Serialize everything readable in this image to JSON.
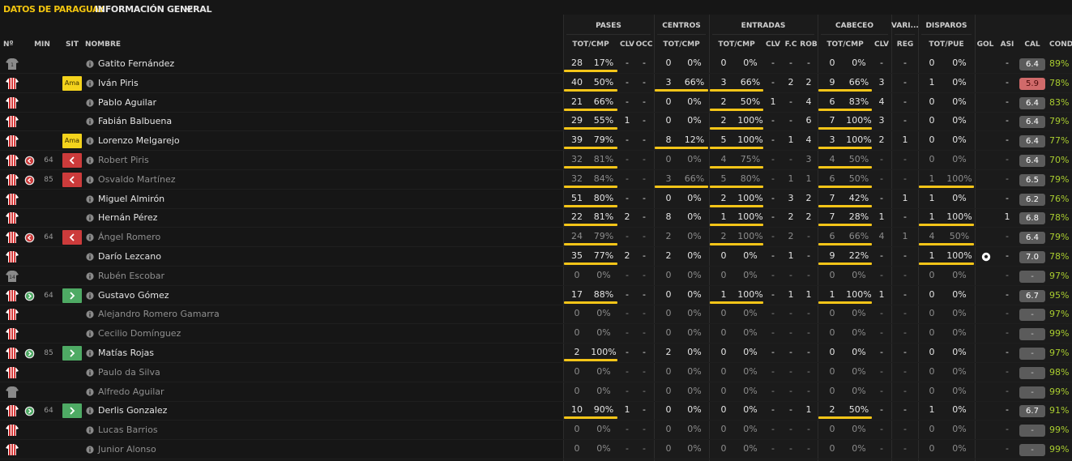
{
  "header": {
    "team_title": "DATOS DE PARAGUAY",
    "view_selector": "INFORMACIÓN GENERAL"
  },
  "groups": [
    {
      "key": "pases",
      "label": "PASES"
    },
    {
      "key": "centros",
      "label": "CENTROS"
    },
    {
      "key": "entradas",
      "label": "ENTRADAS"
    },
    {
      "key": "cabeceo",
      "label": "CABECEO"
    },
    {
      "key": "varios",
      "label": "VARI..."
    },
    {
      "key": "disparos",
      "label": "DISPAROS"
    }
  ],
  "columns": {
    "num": "Nº",
    "min": "MIN",
    "sit": "SIT",
    "nombre": "NOMBRE",
    "pases_totcmp": "TOT/CMP",
    "pases_clv": "CLV",
    "pases_occ": "OCC",
    "centros_totcmp": "TOT/CMP",
    "entradas_totcmp": "TOT/CMP",
    "entradas_clv": "CLV",
    "entradas_fc": "F.C",
    "entradas_rob": "ROB",
    "cabeceo_totcmp": "TOT/CMP",
    "cabeceo_clv": "CLV",
    "varios_reg": "REG",
    "disparos_totpue": "TOT/PUE",
    "gol": "GOL",
    "asi": "ASI",
    "cal": "CAL",
    "cond": "CONDI"
  },
  "colors": {
    "accent": "#f1c40f",
    "bar": "#f5c518",
    "sub_out": "#cc3b3b",
    "sub_in": "#4eaa64",
    "booking": "#f4d31c",
    "condition": "#a9cc2f",
    "low_rating": "#d06a6a"
  },
  "players": [
    {
      "name": "Gatito Fernández",
      "kit": "goalkeeper-kit",
      "num": "1",
      "min": "",
      "sit": "",
      "active": true,
      "pas": [
        "28",
        "17%"
      ],
      "pas_bar": 1,
      "pas_clv": "-",
      "pas_occ": "-",
      "cen": [
        "0",
        "0%"
      ],
      "cen_bar": 0,
      "ent": [
        "0",
        "0%"
      ],
      "ent_bar": 0,
      "ent_clv": "-",
      "ent_fc": "-",
      "ent_rob": "-",
      "cab": [
        "0",
        "0%"
      ],
      "cab_bar": 0,
      "cab_clv": "-",
      "reg": "-",
      "dis": [
        "0",
        "0%"
      ],
      "dis_bar": 0,
      "gol": "",
      "asi": "-",
      "cal": "6.4",
      "cal_type": "n",
      "cond": "89%"
    },
    {
      "name": "Iván Piris",
      "kit": "striped-kit",
      "num": "",
      "min": "",
      "sit": "Ama",
      "active": true,
      "pas": [
        "40",
        "50%"
      ],
      "pas_bar": 1,
      "pas_clv": "-",
      "pas_occ": "-",
      "cen": [
        "3",
        "66%"
      ],
      "cen_bar": 1,
      "ent": [
        "3",
        "66%"
      ],
      "ent_bar": 1,
      "ent_clv": "-",
      "ent_fc": "2",
      "ent_rob": "2",
      "cab": [
        "9",
        "66%"
      ],
      "cab_bar": 1,
      "cab_clv": "3",
      "reg": "-",
      "dis": [
        "1",
        "0%"
      ],
      "dis_bar": 0,
      "gol": "",
      "asi": "-",
      "cal": "5.9",
      "cal_type": "bad",
      "cond": "78%"
    },
    {
      "name": "Pablo Aguilar",
      "kit": "striped-kit",
      "num": "",
      "min": "",
      "sit": "",
      "active": true,
      "pas": [
        "21",
        "66%"
      ],
      "pas_bar": 1,
      "pas_clv": "-",
      "pas_occ": "-",
      "cen": [
        "0",
        "0%"
      ],
      "cen_bar": 0,
      "ent": [
        "2",
        "50%"
      ],
      "ent_bar": 1,
      "ent_clv": "1",
      "ent_fc": "-",
      "ent_rob": "4",
      "cab": [
        "6",
        "83%"
      ],
      "cab_bar": 1,
      "cab_clv": "4",
      "reg": "-",
      "dis": [
        "0",
        "0%"
      ],
      "dis_bar": 0,
      "gol": "",
      "asi": "-",
      "cal": "6.4",
      "cal_type": "n",
      "cond": "83%"
    },
    {
      "name": "Fabián Balbuena",
      "kit": "striped-kit",
      "num": "",
      "min": "",
      "sit": "",
      "active": true,
      "pas": [
        "29",
        "55%"
      ],
      "pas_bar": 1,
      "pas_clv": "1",
      "pas_occ": "-",
      "cen": [
        "0",
        "0%"
      ],
      "cen_bar": 0,
      "ent": [
        "2",
        "100%"
      ],
      "ent_bar": 1,
      "ent_clv": "-",
      "ent_fc": "-",
      "ent_rob": "6",
      "cab": [
        "7",
        "100%"
      ],
      "cab_bar": 1,
      "cab_clv": "3",
      "reg": "-",
      "dis": [
        "0",
        "0%"
      ],
      "dis_bar": 0,
      "gol": "",
      "asi": "-",
      "cal": "6.4",
      "cal_type": "n",
      "cond": "79%"
    },
    {
      "name": "Lorenzo Melgarejo",
      "kit": "striped-kit",
      "num": "",
      "min": "",
      "sit": "Ama",
      "active": true,
      "pas": [
        "39",
        "79%"
      ],
      "pas_bar": 1,
      "pas_clv": "-",
      "pas_occ": "-",
      "cen": [
        "8",
        "12%"
      ],
      "cen_bar": 1,
      "ent": [
        "5",
        "100%"
      ],
      "ent_bar": 1,
      "ent_clv": "-",
      "ent_fc": "1",
      "ent_rob": "4",
      "cab": [
        "3",
        "100%"
      ],
      "cab_bar": 1,
      "cab_clv": "2",
      "reg": "1",
      "dis": [
        "0",
        "0%"
      ],
      "dis_bar": 0,
      "gol": "",
      "asi": "-",
      "cal": "6.4",
      "cal_type": "n",
      "cond": "77%"
    },
    {
      "name": "Robert Piris",
      "kit": "striped-kit",
      "num": "",
      "min": "64",
      "sit": "out",
      "active": false,
      "pas": [
        "32",
        "81%"
      ],
      "pas_bar": 1,
      "pas_clv": "-",
      "pas_occ": "-",
      "cen": [
        "0",
        "0%"
      ],
      "cen_bar": 0,
      "ent": [
        "4",
        "75%"
      ],
      "ent_bar": 1,
      "ent_clv": "-",
      "ent_fc": "-",
      "ent_rob": "3",
      "cab": [
        "4",
        "50%"
      ],
      "cab_bar": 1,
      "cab_clv": "-",
      "reg": "-",
      "dis": [
        "0",
        "0%"
      ],
      "dis_bar": 0,
      "gol": "",
      "asi": "-",
      "cal": "6.4",
      "cal_type": "n",
      "cond": "70%"
    },
    {
      "name": "Osvaldo Martínez",
      "kit": "striped-kit",
      "num": "",
      "min": "85",
      "sit": "out",
      "active": false,
      "pas": [
        "32",
        "84%"
      ],
      "pas_bar": 1,
      "pas_clv": "-",
      "pas_occ": "-",
      "cen": [
        "3",
        "66%"
      ],
      "cen_bar": 1,
      "ent": [
        "5",
        "80%"
      ],
      "ent_bar": 1,
      "ent_clv": "-",
      "ent_fc": "1",
      "ent_rob": "1",
      "cab": [
        "6",
        "50%"
      ],
      "cab_bar": 1,
      "cab_clv": "-",
      "reg": "-",
      "dis": [
        "1",
        "100%"
      ],
      "dis_bar": 1,
      "gol": "",
      "asi": "-",
      "cal": "6.5",
      "cal_type": "n",
      "cond": "79%"
    },
    {
      "name": "Miguel Almirón",
      "kit": "striped-kit",
      "num": "",
      "min": "",
      "sit": "",
      "active": true,
      "pas": [
        "51",
        "80%"
      ],
      "pas_bar": 1,
      "pas_clv": "-",
      "pas_occ": "-",
      "cen": [
        "0",
        "0%"
      ],
      "cen_bar": 0,
      "ent": [
        "2",
        "100%"
      ],
      "ent_bar": 1,
      "ent_clv": "-",
      "ent_fc": "3",
      "ent_rob": "2",
      "cab": [
        "7",
        "42%"
      ],
      "cab_bar": 1,
      "cab_clv": "-",
      "reg": "1",
      "dis": [
        "1",
        "0%"
      ],
      "dis_bar": 0,
      "gol": "",
      "asi": "-",
      "cal": "6.2",
      "cal_type": "n",
      "cond": "76%"
    },
    {
      "name": "Hernán Pérez",
      "kit": "striped-kit",
      "num": "",
      "min": "",
      "sit": "",
      "active": true,
      "pas": [
        "22",
        "81%"
      ],
      "pas_bar": 1,
      "pas_clv": "2",
      "pas_occ": "-",
      "cen": [
        "8",
        "0%"
      ],
      "cen_bar": 0,
      "ent": [
        "1",
        "100%"
      ],
      "ent_bar": 1,
      "ent_clv": "-",
      "ent_fc": "2",
      "ent_rob": "2",
      "cab": [
        "7",
        "28%"
      ],
      "cab_bar": 1,
      "cab_clv": "1",
      "reg": "-",
      "dis": [
        "1",
        "100%"
      ],
      "dis_bar": 1,
      "gol": "",
      "asi": "1",
      "cal": "6.8",
      "cal_type": "n",
      "cond": "78%"
    },
    {
      "name": "Ángel Romero",
      "kit": "striped-kit",
      "num": "",
      "min": "64",
      "sit": "out",
      "active": false,
      "pas": [
        "24",
        "79%"
      ],
      "pas_bar": 1,
      "pas_clv": "-",
      "pas_occ": "-",
      "cen": [
        "2",
        "0%"
      ],
      "cen_bar": 0,
      "ent": [
        "2",
        "100%"
      ],
      "ent_bar": 1,
      "ent_clv": "-",
      "ent_fc": "2",
      "ent_rob": "-",
      "cab": [
        "6",
        "66%"
      ],
      "cab_bar": 1,
      "cab_clv": "4",
      "reg": "1",
      "dis": [
        "4",
        "50%"
      ],
      "dis_bar": 1,
      "gol": "",
      "asi": "-",
      "cal": "6.4",
      "cal_type": "n",
      "cond": "79%"
    },
    {
      "name": "Darío Lezcano",
      "kit": "striped-kit",
      "num": "",
      "min": "",
      "sit": "",
      "active": true,
      "pas": [
        "35",
        "77%"
      ],
      "pas_bar": 1,
      "pas_clv": "2",
      "pas_occ": "-",
      "cen": [
        "2",
        "0%"
      ],
      "cen_bar": 0,
      "ent": [
        "0",
        "0%"
      ],
      "ent_bar": 0,
      "ent_clv": "-",
      "ent_fc": "1",
      "ent_rob": "-",
      "cab": [
        "9",
        "22%"
      ],
      "cab_bar": 1,
      "cab_clv": "-",
      "reg": "-",
      "dis": [
        "1",
        "100%"
      ],
      "dis_bar": 1,
      "gol": "ball",
      "asi": "-",
      "cal": "7.0",
      "cal_type": "n",
      "cond": "78%"
    },
    {
      "name": "Rubén Escobar",
      "kit": "goalkeeper-kit",
      "num": "14",
      "min": "",
      "sit": "",
      "active": false,
      "pas": [
        "0",
        "0%"
      ],
      "pas_bar": 0,
      "pas_clv": "-",
      "pas_occ": "-",
      "cen": [
        "0",
        "0%"
      ],
      "cen_bar": 0,
      "ent": [
        "0",
        "0%"
      ],
      "ent_bar": 0,
      "ent_clv": "-",
      "ent_fc": "-",
      "ent_rob": "-",
      "cab": [
        "0",
        "0%"
      ],
      "cab_bar": 0,
      "cab_clv": "-",
      "reg": "-",
      "dis": [
        "0",
        "0%"
      ],
      "dis_bar": 0,
      "gol": "",
      "asi": "-",
      "cal": "-",
      "cal_type": "none",
      "cond": "97%"
    },
    {
      "name": "Gustavo Gómez",
      "kit": "striped-kit",
      "num": "",
      "min": "64",
      "sit": "in",
      "active": true,
      "pas": [
        "17",
        "88%"
      ],
      "pas_bar": 1,
      "pas_clv": "-",
      "pas_occ": "-",
      "cen": [
        "0",
        "0%"
      ],
      "cen_bar": 0,
      "ent": [
        "1",
        "100%"
      ],
      "ent_bar": 1,
      "ent_clv": "-",
      "ent_fc": "1",
      "ent_rob": "1",
      "cab": [
        "1",
        "100%"
      ],
      "cab_bar": 1,
      "cab_clv": "1",
      "reg": "-",
      "dis": [
        "0",
        "0%"
      ],
      "dis_bar": 0,
      "gol": "",
      "asi": "-",
      "cal": "6.7",
      "cal_type": "n",
      "cond": "95%"
    },
    {
      "name": "Alejandro Romero Gamarra",
      "kit": "striped-kit",
      "num": "",
      "min": "",
      "sit": "",
      "active": false,
      "pas": [
        "0",
        "0%"
      ],
      "pas_bar": 0,
      "pas_clv": "-",
      "pas_occ": "-",
      "cen": [
        "0",
        "0%"
      ],
      "cen_bar": 0,
      "ent": [
        "0",
        "0%"
      ],
      "ent_bar": 0,
      "ent_clv": "-",
      "ent_fc": "-",
      "ent_rob": "-",
      "cab": [
        "0",
        "0%"
      ],
      "cab_bar": 0,
      "cab_clv": "-",
      "reg": "-",
      "dis": [
        "0",
        "0%"
      ],
      "dis_bar": 0,
      "gol": "",
      "asi": "-",
      "cal": "-",
      "cal_type": "none",
      "cond": "97%"
    },
    {
      "name": "Cecilio Domínguez",
      "kit": "striped-kit",
      "num": "",
      "min": "",
      "sit": "",
      "active": false,
      "pas": [
        "0",
        "0%"
      ],
      "pas_bar": 0,
      "pas_clv": "-",
      "pas_occ": "-",
      "cen": [
        "0",
        "0%"
      ],
      "cen_bar": 0,
      "ent": [
        "0",
        "0%"
      ],
      "ent_bar": 0,
      "ent_clv": "-",
      "ent_fc": "-",
      "ent_rob": "-",
      "cab": [
        "0",
        "0%"
      ],
      "cab_bar": 0,
      "cab_clv": "-",
      "reg": "-",
      "dis": [
        "0",
        "0%"
      ],
      "dis_bar": 0,
      "gol": "",
      "asi": "-",
      "cal": "-",
      "cal_type": "none",
      "cond": "99%"
    },
    {
      "name": "Matías Rojas",
      "kit": "striped-kit",
      "num": "",
      "min": "85",
      "sit": "in",
      "active": true,
      "pas": [
        "2",
        "100%"
      ],
      "pas_bar": 1,
      "pas_clv": "-",
      "pas_occ": "-",
      "cen": [
        "2",
        "0%"
      ],
      "cen_bar": 0,
      "ent": [
        "0",
        "0%"
      ],
      "ent_bar": 0,
      "ent_clv": "-",
      "ent_fc": "-",
      "ent_rob": "-",
      "cab": [
        "0",
        "0%"
      ],
      "cab_bar": 0,
      "cab_clv": "-",
      "reg": "-",
      "dis": [
        "0",
        "0%"
      ],
      "dis_bar": 0,
      "gol": "",
      "asi": "-",
      "cal": "-",
      "cal_type": "none",
      "cond": "97%"
    },
    {
      "name": "Paulo da Silva",
      "kit": "striped-kit",
      "num": "",
      "min": "",
      "sit": "",
      "active": false,
      "pas": [
        "0",
        "0%"
      ],
      "pas_bar": 0,
      "pas_clv": "-",
      "pas_occ": "-",
      "cen": [
        "0",
        "0%"
      ],
      "cen_bar": 0,
      "ent": [
        "0",
        "0%"
      ],
      "ent_bar": 0,
      "ent_clv": "-",
      "ent_fc": "-",
      "ent_rob": "-",
      "cab": [
        "0",
        "0%"
      ],
      "cab_bar": 0,
      "cab_clv": "-",
      "reg": "-",
      "dis": [
        "0",
        "0%"
      ],
      "dis_bar": 0,
      "gol": "",
      "asi": "-",
      "cal": "-",
      "cal_type": "none",
      "cond": "98%"
    },
    {
      "name": "Alfredo Aguilar",
      "kit": "goalkeeper-kit",
      "num": "",
      "min": "",
      "sit": "",
      "active": false,
      "pas": [
        "0",
        "0%"
      ],
      "pas_bar": 0,
      "pas_clv": "-",
      "pas_occ": "-",
      "cen": [
        "0",
        "0%"
      ],
      "cen_bar": 0,
      "ent": [
        "0",
        "0%"
      ],
      "ent_bar": 0,
      "ent_clv": "-",
      "ent_fc": "-",
      "ent_rob": "-",
      "cab": [
        "0",
        "0%"
      ],
      "cab_bar": 0,
      "cab_clv": "-",
      "reg": "-",
      "dis": [
        "0",
        "0%"
      ],
      "dis_bar": 0,
      "gol": "",
      "asi": "-",
      "cal": "-",
      "cal_type": "none",
      "cond": "99%"
    },
    {
      "name": "Derlis Gonzalez",
      "kit": "striped-kit",
      "num": "",
      "min": "64",
      "sit": "in",
      "active": true,
      "pas": [
        "10",
        "90%"
      ],
      "pas_bar": 1,
      "pas_clv": "1",
      "pas_occ": "-",
      "cen": [
        "0",
        "0%"
      ],
      "cen_bar": 0,
      "ent": [
        "0",
        "0%"
      ],
      "ent_bar": 0,
      "ent_clv": "-",
      "ent_fc": "-",
      "ent_rob": "1",
      "cab": [
        "2",
        "50%"
      ],
      "cab_bar": 1,
      "cab_clv": "-",
      "reg": "-",
      "dis": [
        "1",
        "0%"
      ],
      "dis_bar": 0,
      "gol": "",
      "asi": "-",
      "cal": "6.7",
      "cal_type": "n",
      "cond": "91%"
    },
    {
      "name": "Lucas Barrios",
      "kit": "striped-kit",
      "num": "",
      "min": "",
      "sit": "",
      "active": false,
      "pas": [
        "0",
        "0%"
      ],
      "pas_bar": 0,
      "pas_clv": "-",
      "pas_occ": "-",
      "cen": [
        "0",
        "0%"
      ],
      "cen_bar": 0,
      "ent": [
        "0",
        "0%"
      ],
      "ent_bar": 0,
      "ent_clv": "-",
      "ent_fc": "-",
      "ent_rob": "-",
      "cab": [
        "0",
        "0%"
      ],
      "cab_bar": 0,
      "cab_clv": "-",
      "reg": "-",
      "dis": [
        "0",
        "0%"
      ],
      "dis_bar": 0,
      "gol": "",
      "asi": "-",
      "cal": "-",
      "cal_type": "none",
      "cond": "99%"
    },
    {
      "name": "Junior Alonso",
      "kit": "striped-kit",
      "num": "",
      "min": "",
      "sit": "",
      "active": false,
      "pas": [
        "0",
        "0%"
      ],
      "pas_bar": 0,
      "pas_clv": "-",
      "pas_occ": "-",
      "cen": [
        "0",
        "0%"
      ],
      "cen_bar": 0,
      "ent": [
        "0",
        "0%"
      ],
      "ent_bar": 0,
      "ent_clv": "-",
      "ent_fc": "-",
      "ent_rob": "-",
      "cab": [
        "0",
        "0%"
      ],
      "cab_bar": 0,
      "cab_clv": "-",
      "reg": "-",
      "dis": [
        "0",
        "0%"
      ],
      "dis_bar": 0,
      "gol": "",
      "asi": "-",
      "cal": "-",
      "cal_type": "none",
      "cond": "99%"
    }
  ]
}
